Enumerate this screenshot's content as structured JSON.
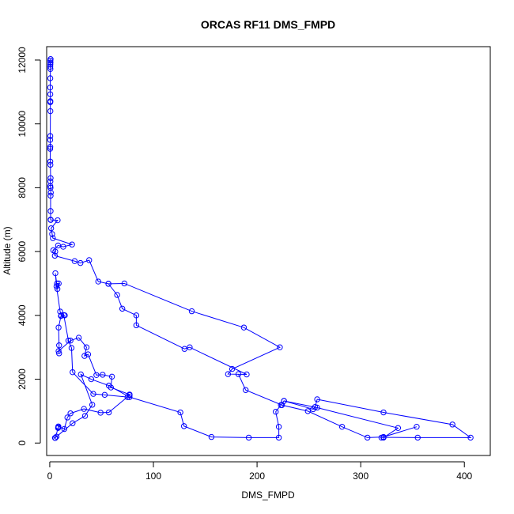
{
  "chart_data": {
    "type": "line",
    "title": "ORCAS RF11 DMS_FMPD",
    "xlabel": "DMS_FMPD",
    "ylabel": "Altitude (m)",
    "xlim": [
      -3,
      425
    ],
    "ylim": [
      -390,
      12420
    ],
    "x_ticks": [
      0,
      100,
      200,
      300,
      400
    ],
    "y_ticks": [
      0,
      2000,
      4000,
      6000,
      8000,
      10000,
      12000
    ],
    "grid": false,
    "legend": "none",
    "series_color": "#0000ff",
    "marker": "open-circle",
    "series": [
      {
        "points": [
          [
            0.8,
            12030
          ],
          [
            0.6,
            11980
          ],
          [
            0.7,
            11920
          ],
          [
            0.6,
            11860
          ],
          [
            0.5,
            11790
          ],
          [
            0.6,
            11720
          ],
          [
            0.5,
            11430
          ],
          [
            0.4,
            11140
          ],
          [
            0.5,
            10930
          ],
          [
            0.6,
            10710
          ],
          [
            0.5,
            10680
          ],
          [
            0.6,
            10400
          ],
          [
            0.5,
            9620
          ],
          [
            0.4,
            9500
          ],
          [
            0.5,
            9280
          ],
          [
            0.4,
            9220
          ],
          [
            0.5,
            8820
          ],
          [
            0.6,
            8720
          ],
          [
            0.8,
            8300
          ],
          [
            0.6,
            8200
          ],
          [
            0.5,
            8050
          ],
          [
            0.7,
            8000
          ],
          [
            1.0,
            7850
          ],
          [
            0.8,
            7750
          ],
          [
            0.8,
            7270
          ],
          [
            0.8,
            7000
          ],
          [
            0.9,
            6990
          ],
          [
            7.6,
            6980
          ],
          [
            1.3,
            6730
          ],
          [
            2.3,
            6550
          ],
          [
            3.0,
            6420
          ],
          [
            21.5,
            6220
          ],
          [
            13.0,
            6150
          ],
          [
            8.0,
            6190
          ],
          [
            3.4,
            6040
          ],
          [
            5.3,
            6000
          ],
          [
            4.9,
            5870
          ],
          [
            24.0,
            5700
          ],
          [
            29.6,
            5640
          ],
          [
            38.0,
            5730
          ],
          [
            46.8,
            5060
          ],
          [
            56.6,
            4990
          ],
          [
            72.0,
            5000
          ],
          [
            137.0,
            4130
          ],
          [
            187.3,
            3620
          ],
          [
            222.0,
            3000
          ],
          [
            176.0,
            2320
          ],
          [
            172.0,
            2160
          ],
          [
            190.0,
            2150
          ],
          [
            135.0,
            3000
          ],
          [
            130.0,
            2950
          ],
          [
            83.5,
            3690
          ],
          [
            83.5,
            4000
          ],
          [
            70.0,
            4210
          ],
          [
            65.0,
            4640
          ],
          [
            56.6,
            4990
          ]
        ]
      },
      {
        "points": [
          [
            7.0,
            5000
          ],
          [
            8.6,
            5000
          ],
          [
            7.4,
            4830
          ],
          [
            5.4,
            5320
          ],
          [
            6.5,
            4910
          ],
          [
            10.0,
            4120
          ],
          [
            11.1,
            4000
          ],
          [
            14.5,
            4000
          ],
          [
            10.8,
            3980
          ],
          [
            8.5,
            3620
          ],
          [
            9.0,
            3060
          ],
          [
            9.0,
            2810
          ],
          [
            8.5,
            2880
          ],
          [
            20.0,
            3210
          ],
          [
            28.0,
            3300
          ],
          [
            35.5,
            3000
          ],
          [
            33.5,
            2730
          ],
          [
            37.0,
            2780
          ],
          [
            45.0,
            2130
          ],
          [
            51.0,
            2140
          ],
          [
            60.0,
            2080
          ],
          [
            59.0,
            1740
          ],
          [
            77.0,
            1520
          ],
          [
            75.0,
            1440
          ],
          [
            53.0,
            1510
          ],
          [
            42.0,
            1540
          ],
          [
            22.0,
            2220
          ],
          [
            21.0,
            2980
          ],
          [
            18.0,
            3210
          ],
          [
            13.5,
            4010
          ]
        ]
      },
      {
        "points": [
          [
            77.0,
            1500
          ],
          [
            57.0,
            960
          ],
          [
            49.0,
            950
          ],
          [
            33.0,
            1070
          ],
          [
            20.0,
            930
          ],
          [
            17.0,
            800
          ],
          [
            14.0,
            440
          ],
          [
            8.3,
            520
          ],
          [
            8.3,
            490
          ],
          [
            8.0,
            470
          ],
          [
            5.4,
            160
          ],
          [
            5.0,
            160
          ],
          [
            6.5,
            200
          ],
          [
            22.0,
            620
          ],
          [
            34.0,
            850
          ],
          [
            41.0,
            1200
          ],
          [
            30.0,
            2150
          ],
          [
            40.0,
            2000
          ],
          [
            57.0,
            1800
          ],
          [
            77.0,
            1440
          ],
          [
            126.0,
            960
          ],
          [
            129.5,
            530
          ],
          [
            156.0,
            190
          ],
          [
            192.0,
            170
          ],
          [
            221.0,
            170
          ],
          [
            221.0,
            510
          ],
          [
            218.0,
            980
          ],
          [
            223.0,
            1190
          ],
          [
            226.0,
            1320
          ],
          [
            254.0,
            1060
          ],
          [
            256.0,
            1130
          ],
          [
            258.0,
            1370
          ],
          [
            322.0,
            960
          ],
          [
            388.5,
            580
          ],
          [
            406.0,
            170
          ],
          [
            355.0,
            170
          ],
          [
            322.0,
            180
          ],
          [
            320.0,
            170
          ],
          [
            354.0,
            510
          ],
          [
            322.0,
            190
          ],
          [
            306.5,
            170
          ],
          [
            282.0,
            510
          ],
          [
            249.0,
            1000
          ],
          [
            224.0,
            1190
          ],
          [
            189.0,
            1660
          ],
          [
            182.0,
            2160
          ]
        ]
      },
      {
        "points": [
          [
            322.0,
            170
          ],
          [
            336.0,
            470
          ],
          [
            258.0,
            1110
          ],
          [
            226.0,
            1320
          ]
        ]
      }
    ]
  }
}
